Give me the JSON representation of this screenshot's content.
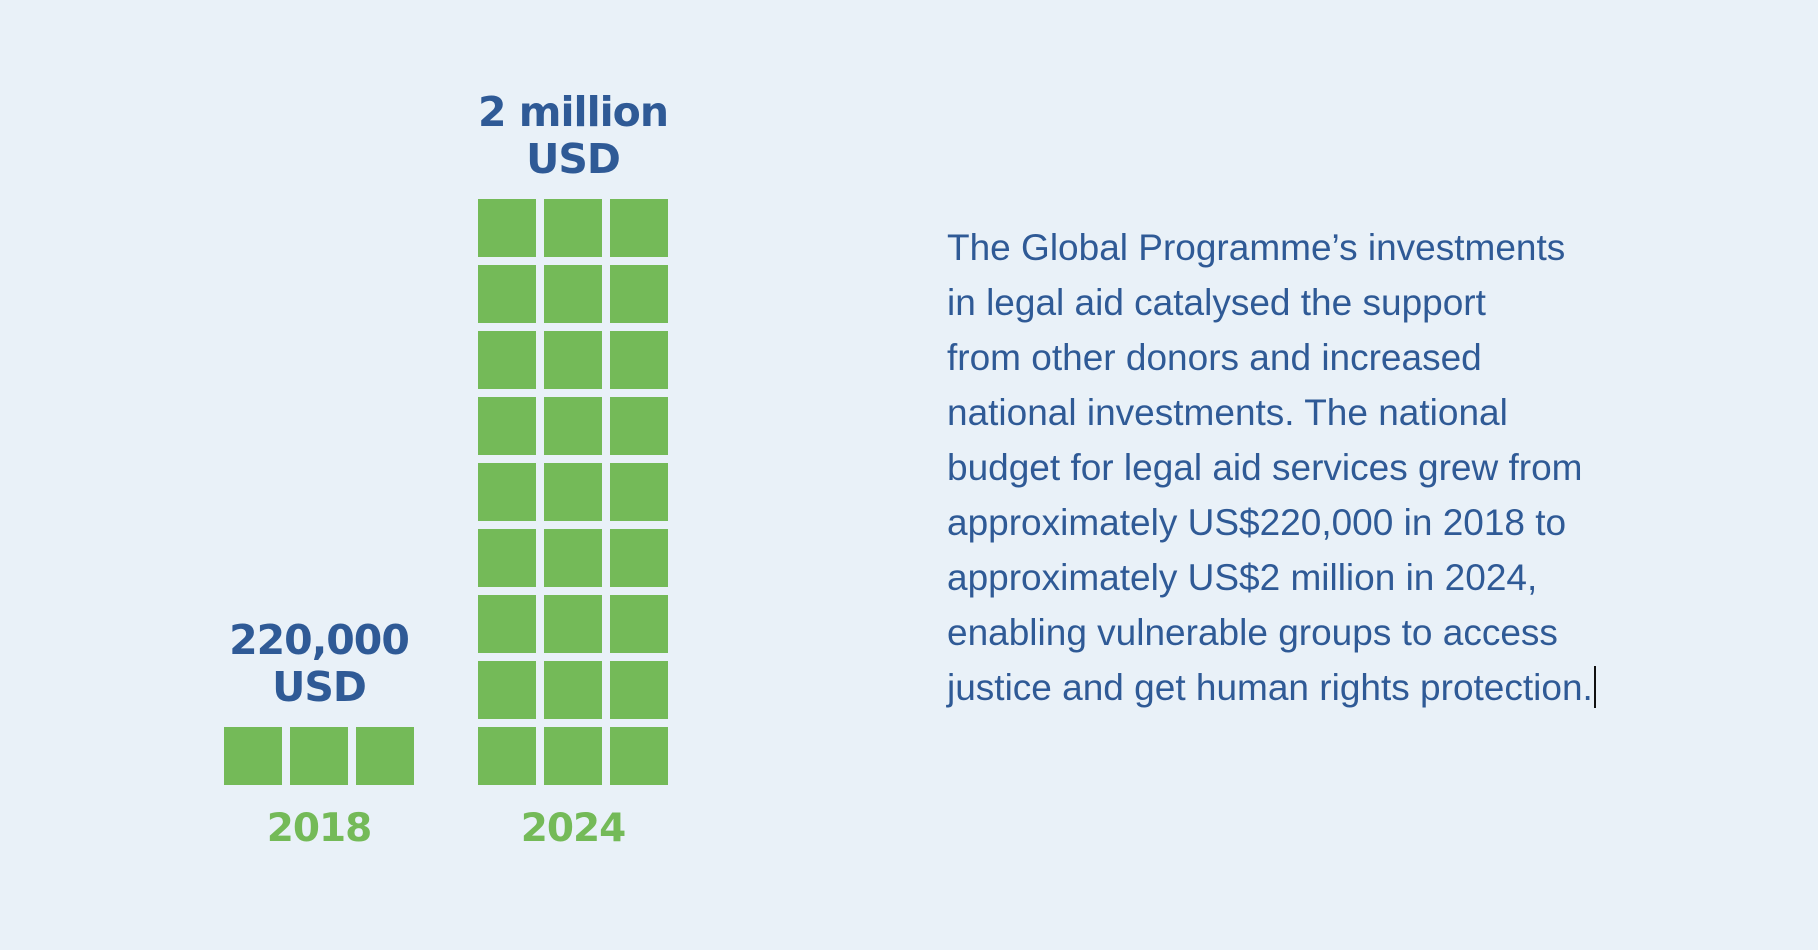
{
  "chart_data": {
    "type": "bar",
    "unit_note": "each square represents an equal share of the amount; 2018 shows 3 squares, 2024 shows 27 squares",
    "categories": [
      "2018",
      "2024"
    ],
    "values": [
      220000,
      2000000
    ],
    "squares": [
      3,
      27
    ],
    "squares_per_row": 3,
    "value_labels": [
      [
        "220,000",
        "USD"
      ],
      [
        "2 million",
        "USD"
      ]
    ],
    "year_labels": [
      "2018",
      "2024"
    ],
    "title": "",
    "xlabel": "",
    "ylabel": "",
    "colors": {
      "square": "#74ba58",
      "value_label": "#2f5a96",
      "year_label": "#74ba58"
    }
  },
  "description": {
    "lines": [
      "The Global Programme’s investments",
      "in legal aid catalysed the support",
      "from other donors and increased",
      "national investments. The national",
      "budget for legal aid services grew from",
      "approximately US$220,000 in 2018 to",
      "approximately US$2 million in 2024,",
      "enabling vulnerable groups to access",
      "justice and get human rights protection."
    ]
  },
  "colors": {
    "background": "#e9f1f8",
    "text": "#2f5a96"
  }
}
